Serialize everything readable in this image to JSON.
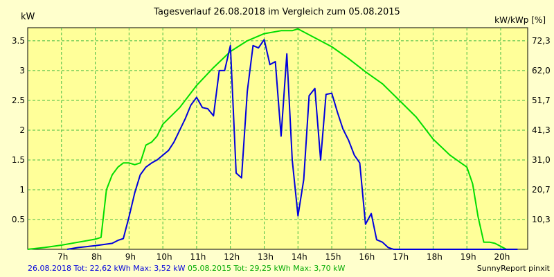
{
  "chart_data": {
    "type": "line",
    "title": "Tagesverlauf 26.08.2018 im Vergleich zum 05.08.2015",
    "ylabel": "kW",
    "ylabel_right": "kW/kWp [%]",
    "ylim": [
      0,
      3.72
    ],
    "x_ticks": [
      "7h",
      "8h",
      "9h",
      "10h",
      "11h",
      "12h",
      "13h",
      "14h",
      "15h",
      "16h",
      "17h",
      "18h",
      "19h",
      "20h"
    ],
    "x_tick_values": [
      7,
      8,
      9,
      10,
      11,
      12,
      13,
      14,
      15,
      16,
      17,
      18,
      19,
      20
    ],
    "y_ticks": [
      "0.5",
      "1",
      "1.5",
      "2",
      "2.5",
      "3",
      "3.5"
    ],
    "y_tick_values": [
      0.5,
      1,
      1.5,
      2,
      2.5,
      3,
      3.5
    ],
    "y2_ticks": [
      "10,3",
      "20,7",
      "31,0",
      "41,3",
      "51,7",
      "62,0",
      "72,3"
    ],
    "grid": true,
    "colors": {
      "background": "#ffffcc",
      "plot_background": "#ffff99",
      "grid": "#44bb44",
      "series1": "#0000dd",
      "series2": "#00dd00"
    },
    "series": [
      {
        "name": "26.08.2018",
        "color": "#0000dd",
        "x": [
          7.17,
          7.5,
          8.0,
          8.5,
          8.67,
          8.83,
          9.0,
          9.17,
          9.33,
          9.5,
          9.67,
          9.83,
          10.0,
          10.17,
          10.33,
          10.5,
          10.67,
          10.83,
          11.0,
          11.17,
          11.33,
          11.5,
          11.67,
          11.83,
          12.0,
          12.17,
          12.33,
          12.5,
          12.67,
          12.83,
          13.0,
          13.17,
          13.33,
          13.5,
          13.67,
          13.83,
          14.0,
          14.17,
          14.33,
          14.5,
          14.67,
          14.83,
          15.0,
          15.17,
          15.33,
          15.5,
          15.67,
          15.83,
          16.0,
          16.17,
          16.33,
          16.5,
          16.67,
          16.83,
          17.0,
          17.17,
          17.33,
          17.5,
          17.67,
          17.83,
          18.0,
          18.17,
          18.33,
          18.5,
          18.67,
          18.83,
          19.0,
          19.17,
          19.33,
          19.5,
          19.67,
          19.83,
          20.0,
          20.5
        ],
        "values": [
          0.0,
          0.03,
          0.06,
          0.1,
          0.15,
          0.18,
          0.55,
          0.95,
          1.25,
          1.38,
          1.45,
          1.5,
          1.58,
          1.66,
          1.8,
          2.0,
          2.2,
          2.42,
          2.55,
          2.38,
          2.36,
          2.24,
          3.0,
          3.0,
          3.42,
          1.28,
          1.2,
          2.65,
          3.42,
          3.38,
          3.52,
          3.1,
          3.15,
          1.9,
          3.28,
          1.5,
          0.56,
          1.17,
          2.58,
          2.7,
          1.5,
          2.6,
          2.62,
          2.3,
          2.02,
          1.83,
          1.58,
          1.45,
          0.42,
          0.6,
          0.16,
          0.12,
          0.03,
          0.0,
          0.0,
          0.0,
          0.0,
          0.0,
          0.0,
          0.0,
          0.0,
          0.0,
          0.0,
          0.0,
          0.0,
          0.0,
          0.0,
          0.0,
          0.0,
          0.0,
          0.0,
          0.0,
          0.0,
          0.0
        ]
      },
      {
        "name": "05.08.2015",
        "color": "#00dd00",
        "x": [
          6.0,
          6.5,
          7.0,
          7.5,
          8.0,
          8.17,
          8.33,
          8.5,
          8.67,
          8.83,
          9.0,
          9.17,
          9.33,
          9.5,
          9.67,
          9.83,
          10.0,
          10.5,
          11.0,
          11.5,
          12.0,
          12.5,
          13.0,
          13.5,
          13.83,
          14.0,
          14.5,
          15.0,
          15.5,
          16.0,
          16.5,
          17.0,
          17.5,
          18.0,
          18.5,
          19.0,
          19.17,
          19.33,
          19.5,
          19.67,
          19.83,
          20.0,
          20.17,
          20.33,
          20.5
        ],
        "values": [
          0.0,
          0.03,
          0.07,
          0.12,
          0.17,
          0.2,
          1.0,
          1.25,
          1.38,
          1.45,
          1.45,
          1.42,
          1.45,
          1.75,
          1.8,
          1.9,
          2.1,
          2.38,
          2.75,
          3.05,
          3.32,
          3.5,
          3.62,
          3.67,
          3.67,
          3.7,
          3.55,
          3.4,
          3.2,
          2.98,
          2.78,
          2.5,
          2.22,
          1.85,
          1.58,
          1.38,
          1.1,
          0.55,
          0.12,
          0.12,
          0.1,
          0.05,
          0.0,
          0.0,
          0.0
        ]
      }
    ]
  },
  "footer": {
    "series1_summary": "26.08.2018 Tot: 22,62 kWh Max: 3,52 kW",
    "series2_summary": "05.08.2015 Tot: 29,25 kWh Max: 3,70 kW",
    "credit": "SunnyReport pinxit"
  }
}
